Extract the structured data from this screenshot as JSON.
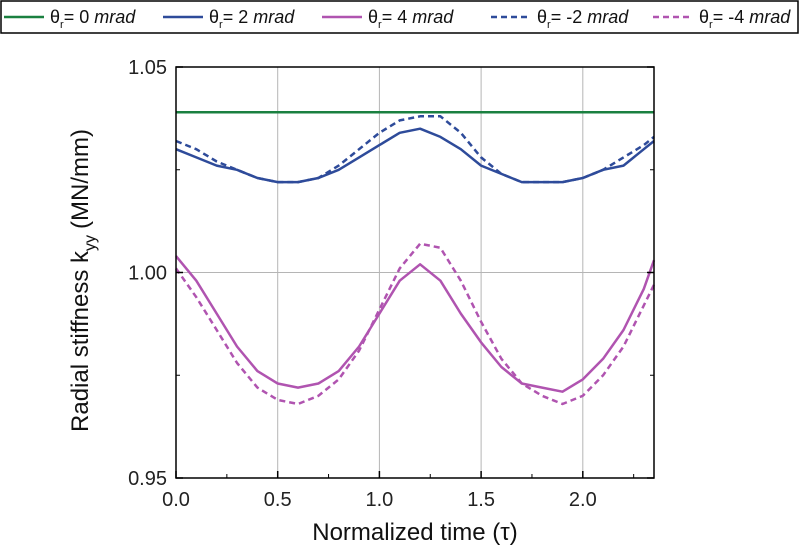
{
  "chart_data": {
    "type": "line",
    "title": "",
    "xlabel": "Normalized time (τ)",
    "ylabel": "Radial stiffness k",
    "ylabel_subscript": "yy",
    "ylabel_unit": "(MN/mm)",
    "xlim": [
      0.0,
      2.35
    ],
    "ylim": [
      0.95,
      1.05
    ],
    "x_ticks": [
      "0.0",
      "0.5",
      "1.0",
      "1.5",
      "2.0"
    ],
    "y_ticks": [
      "0.95",
      "1.00",
      "1.05"
    ],
    "grid": true,
    "legend_position": "top",
    "x": [
      0.0,
      0.1,
      0.2,
      0.3,
      0.4,
      0.5,
      0.6,
      0.7,
      0.8,
      0.9,
      1.0,
      1.1,
      1.2,
      1.3,
      1.4,
      1.5,
      1.6,
      1.7,
      1.8,
      1.9,
      2.0,
      2.1,
      2.2,
      2.3,
      2.35
    ],
    "series": [
      {
        "name": "θr = 0 mrad",
        "symbol": "θ",
        "subscript": "r",
        "label_value": "= 0",
        "label_unit": "mrad",
        "color": "#1a8040",
        "dash": "solid",
        "values": [
          1.039,
          1.039,
          1.039,
          1.039,
          1.039,
          1.039,
          1.039,
          1.039,
          1.039,
          1.039,
          1.039,
          1.039,
          1.039,
          1.039,
          1.039,
          1.039,
          1.039,
          1.039,
          1.039,
          1.039,
          1.039,
          1.039,
          1.039,
          1.039,
          1.039
        ]
      },
      {
        "name": "θr = 2 mrad",
        "symbol": "θ",
        "subscript": "r",
        "label_value": "= 2",
        "label_unit": "mrad",
        "color": "#2e4b9a",
        "dash": "solid",
        "values": [
          1.03,
          1.028,
          1.026,
          1.025,
          1.023,
          1.022,
          1.022,
          1.023,
          1.025,
          1.028,
          1.031,
          1.034,
          1.035,
          1.033,
          1.03,
          1.026,
          1.024,
          1.022,
          1.022,
          1.022,
          1.023,
          1.025,
          1.026,
          1.03,
          1.032
        ]
      },
      {
        "name": "θr = 4 mrad",
        "symbol": "θ",
        "subscript": "r",
        "label_value": "= 4",
        "label_unit": "mrad",
        "color": "#b054b0",
        "dash": "solid",
        "values": [
          1.004,
          0.998,
          0.99,
          0.982,
          0.976,
          0.973,
          0.972,
          0.973,
          0.976,
          0.982,
          0.99,
          0.998,
          1.002,
          0.998,
          0.99,
          0.983,
          0.977,
          0.973,
          0.972,
          0.971,
          0.974,
          0.979,
          0.986,
          0.996,
          1.003
        ]
      },
      {
        "name": "θr = -2 mrad",
        "symbol": "θ",
        "subscript": "r",
        "label_value": "= -2",
        "label_unit": "mrad",
        "color": "#2e4b9a",
        "dash": "dashed",
        "values": [
          1.032,
          1.03,
          1.027,
          1.025,
          1.023,
          1.022,
          1.022,
          1.023,
          1.026,
          1.03,
          1.034,
          1.037,
          1.038,
          1.038,
          1.034,
          1.028,
          1.024,
          1.022,
          1.022,
          1.022,
          1.023,
          1.025,
          1.028,
          1.031,
          1.033
        ]
      },
      {
        "name": "θr = -4 mrad",
        "symbol": "θ",
        "subscript": "r",
        "label_value": "= -4",
        "label_unit": "mrad",
        "color": "#b054b0",
        "dash": "dashed",
        "values": [
          1.001,
          0.994,
          0.986,
          0.978,
          0.972,
          0.969,
          0.968,
          0.97,
          0.974,
          0.981,
          0.991,
          1.001,
          1.007,
          1.006,
          0.998,
          0.988,
          0.979,
          0.973,
          0.97,
          0.968,
          0.97,
          0.975,
          0.982,
          0.992,
          0.997
        ]
      }
    ]
  }
}
